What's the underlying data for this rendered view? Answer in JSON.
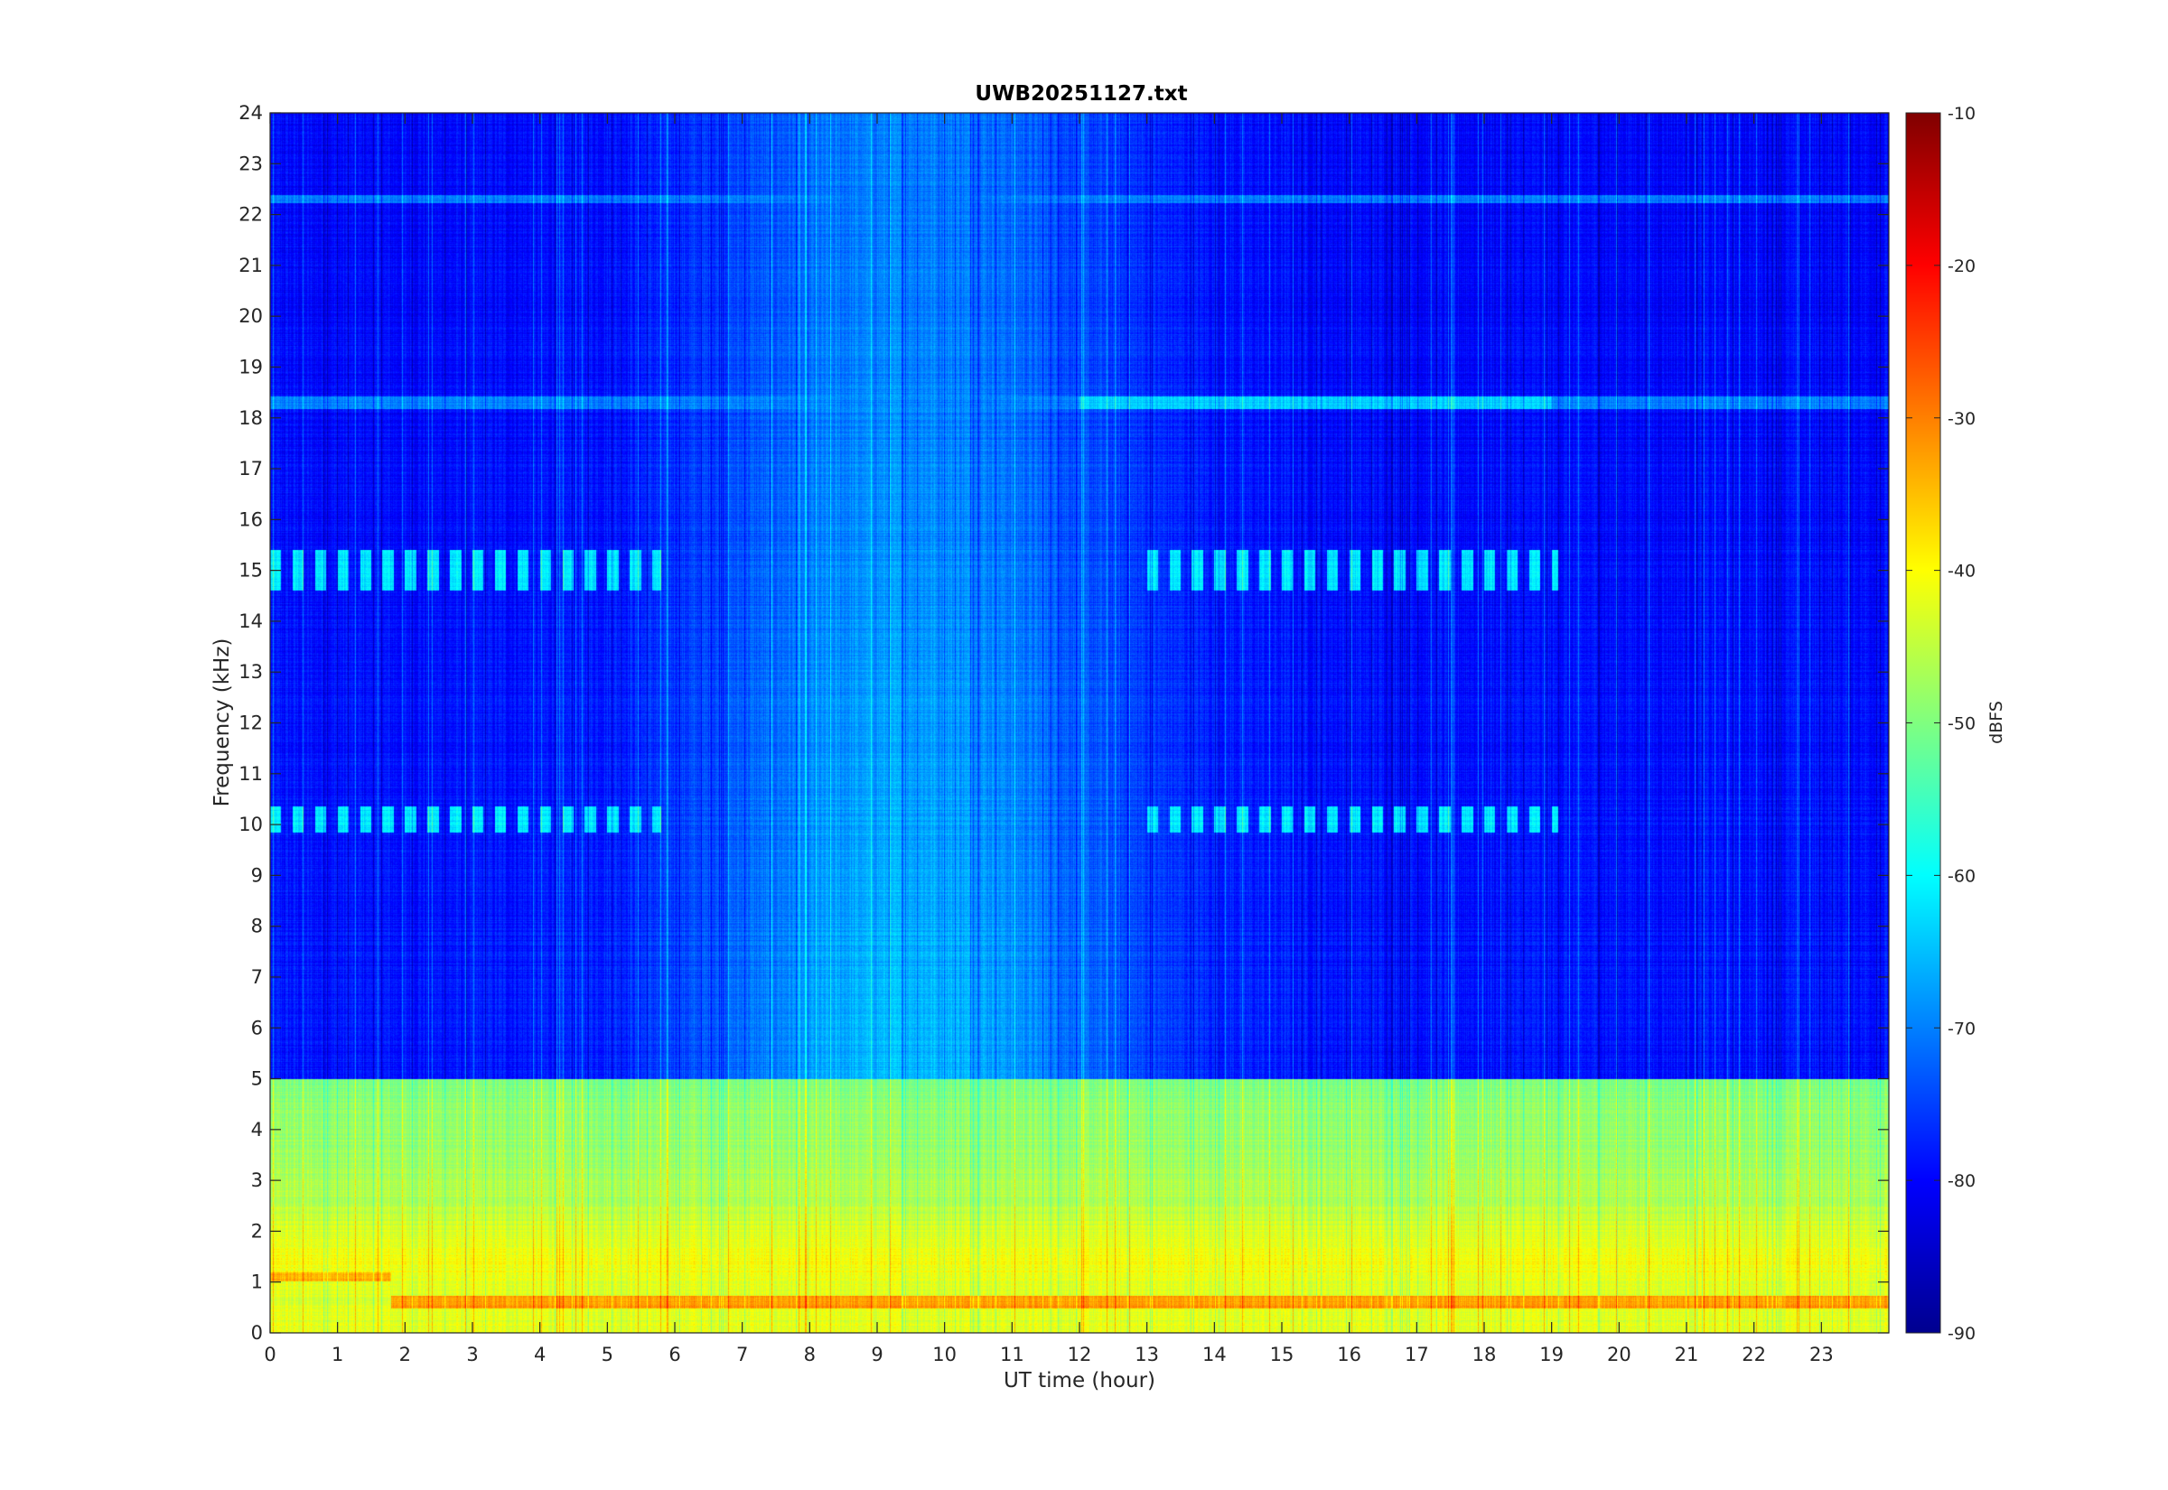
{
  "chart_data": {
    "type": "heatmap",
    "title": "UWB20251127.txt",
    "xlabel": "UT time (hour)",
    "ylabel": "Frequency (kHz)",
    "xlim": [
      0,
      24
    ],
    "ylim": [
      0,
      24
    ],
    "x_ticks": [
      0,
      1,
      2,
      3,
      4,
      5,
      6,
      7,
      8,
      9,
      10,
      11,
      12,
      13,
      14,
      15,
      16,
      17,
      18,
      19,
      20,
      21,
      22,
      23
    ],
    "y_ticks": [
      0,
      1,
      2,
      3,
      4,
      5,
      6,
      7,
      8,
      9,
      10,
      11,
      12,
      13,
      14,
      15,
      16,
      17,
      18,
      19,
      20,
      21,
      22,
      23,
      24
    ],
    "colormap": "jet",
    "colorbar": {
      "label": "dBFS",
      "range": [
        -90,
        -10
      ],
      "ticks": [
        -10,
        -20,
        -30,
        -40,
        -50,
        -60,
        -70,
        -80,
        -90
      ]
    },
    "grid": false,
    "features": {
      "background_low_freq_dbfs": -78,
      "background_high_freq_dbfs": -80,
      "band_0_5_khz_dbfs": -50,
      "band_1_2_khz_dbfs": -40,
      "strong_line_0_6_khz": {
        "freq_khz": 0.6,
        "start_hour": 1.8,
        "end_hour": 24,
        "dbfs": -32
      },
      "line_1_1_khz": {
        "freq_khz": 1.1,
        "start_hour": 0,
        "end_hour": 1.8,
        "dbfs": -34
      },
      "line_18_3_khz": {
        "freq_khz": 18.3,
        "start_hour": 0,
        "end_hour": 24,
        "dbfs": -66
      },
      "line_22_3_khz": {
        "freq_khz": 22.3,
        "start_hour": 0,
        "end_hour": 24,
        "dbfs": -70
      },
      "dashed_bands_15_khz": [
        {
          "start_hour": 0,
          "end_hour": 5.8
        },
        {
          "start_hour": 12.9,
          "end_hour": 19.1
        }
      ],
      "dashed_bands_10_khz": [
        {
          "start_hour": 0,
          "end_hour": 5.8
        },
        {
          "start_hour": 12.9,
          "end_hour": 19.1
        }
      ],
      "broadband_enhancement": {
        "start_hour": 5,
        "end_hour": 12.5,
        "peak_hour": 9.5,
        "dbfs": -62
      }
    }
  }
}
